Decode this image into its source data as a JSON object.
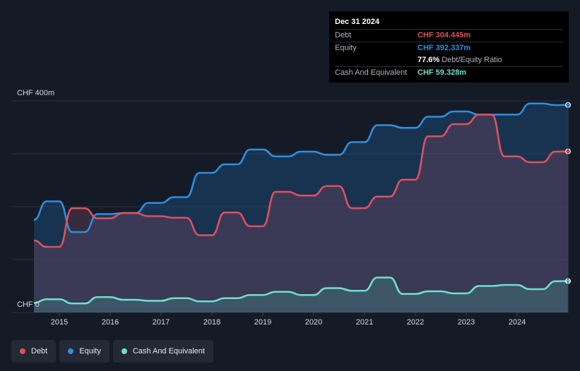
{
  "chart_data": {
    "type": "area",
    "y_unit": "CHF m",
    "ylim": [
      0,
      400
    ],
    "xlim": [
      2014.5,
      2025.0
    ],
    "y_top_label": "CHF 400m",
    "y_bottom_label": "CHF 0",
    "x_ticks": [
      "2015",
      "2016",
      "2017",
      "2018",
      "2019",
      "2020",
      "2021",
      "2022",
      "2023",
      "2024"
    ],
    "colors": {
      "debt": "#e0505f",
      "equity": "#2f8fe0",
      "cash": "#6fe0cc"
    },
    "series": [
      {
        "name": "Equity",
        "key": "equity",
        "x": [
          2014.5,
          2014.75,
          2015.0,
          2015.25,
          2015.5,
          2015.75,
          2016.0,
          2016.25,
          2016.5,
          2016.75,
          2017.0,
          2017.25,
          2017.5,
          2017.75,
          2018.0,
          2018.25,
          2018.5,
          2018.75,
          2019.0,
          2019.25,
          2019.5,
          2019.75,
          2020.0,
          2020.25,
          2020.5,
          2020.75,
          2021.0,
          2021.25,
          2021.5,
          2021.75,
          2022.0,
          2022.25,
          2022.5,
          2022.75,
          2023.0,
          2023.25,
          2023.5,
          2023.75,
          2024.0,
          2024.25,
          2024.5,
          2024.75,
          2025.0
        ],
        "values": [
          175,
          210,
          210,
          152,
          152,
          186,
          186,
          188,
          188,
          207,
          207,
          218,
          218,
          264,
          264,
          280,
          280,
          308,
          308,
          295,
          295,
          304,
          304,
          298,
          298,
          322,
          322,
          354,
          354,
          349,
          349,
          370,
          370,
          380,
          380,
          374,
          374,
          374,
          374,
          395,
          395,
          392,
          392.337
        ]
      },
      {
        "name": "Debt",
        "key": "debt",
        "x": [
          2014.5,
          2014.75,
          2015.0,
          2015.25,
          2015.5,
          2015.75,
          2016.0,
          2016.25,
          2016.5,
          2016.75,
          2017.0,
          2017.25,
          2017.5,
          2017.75,
          2018.0,
          2018.25,
          2018.5,
          2018.75,
          2019.0,
          2019.25,
          2019.5,
          2019.75,
          2020.0,
          2020.25,
          2020.5,
          2020.75,
          2021.0,
          2021.25,
          2021.5,
          2021.75,
          2022.0,
          2022.25,
          2022.5,
          2022.75,
          2023.0,
          2023.25,
          2023.5,
          2023.75,
          2024.0,
          2024.25,
          2024.5,
          2024.75,
          2025.0
        ],
        "values": [
          136,
          124,
          124,
          197,
          197,
          178,
          178,
          188,
          188,
          182,
          182,
          179,
          179,
          146,
          146,
          189,
          189,
          163,
          163,
          228,
          228,
          221,
          221,
          239,
          239,
          197,
          197,
          219,
          219,
          251,
          251,
          333,
          333,
          356,
          356,
          374,
          374,
          295,
          295,
          284,
          284,
          304,
          304.445
        ]
      },
      {
        "name": "Cash And Equivalent",
        "key": "cash",
        "x": [
          2014.5,
          2014.75,
          2015.0,
          2015.25,
          2015.5,
          2015.75,
          2016.0,
          2016.25,
          2016.5,
          2016.75,
          2017.0,
          2017.25,
          2017.5,
          2017.75,
          2018.0,
          2018.25,
          2018.5,
          2018.75,
          2019.0,
          2019.25,
          2019.5,
          2019.75,
          2020.0,
          2020.25,
          2020.5,
          2020.75,
          2021.0,
          2021.25,
          2021.5,
          2021.75,
          2022.0,
          2022.25,
          2022.5,
          2022.75,
          2023.0,
          2023.25,
          2023.5,
          2023.75,
          2024.0,
          2024.25,
          2024.5,
          2024.75,
          2025.0
        ],
        "values": [
          18,
          25,
          25,
          17,
          17,
          29,
          29,
          24,
          24,
          22,
          22,
          27,
          27,
          21,
          21,
          27,
          27,
          33,
          33,
          39,
          39,
          33,
          33,
          46,
          46,
          41,
          41,
          66,
          66,
          35,
          35,
          40,
          40,
          36,
          36,
          50,
          50,
          52,
          52,
          44,
          44,
          59,
          59.328
        ]
      }
    ],
    "legend": [
      "Debt",
      "Equity",
      "Cash And Equivalent"
    ],
    "grid": true,
    "tooltip": {
      "date": "Dec 31 2024",
      "debt_label": "Debt",
      "debt_value": "CHF 304.445m",
      "equity_label": "Equity",
      "equity_value": "CHF 392.337m",
      "ratio_value": "77.6%",
      "ratio_label": "Debt/Equity Ratio",
      "cash_label": "Cash And Equivalent",
      "cash_value": "CHF 59.328m"
    }
  }
}
